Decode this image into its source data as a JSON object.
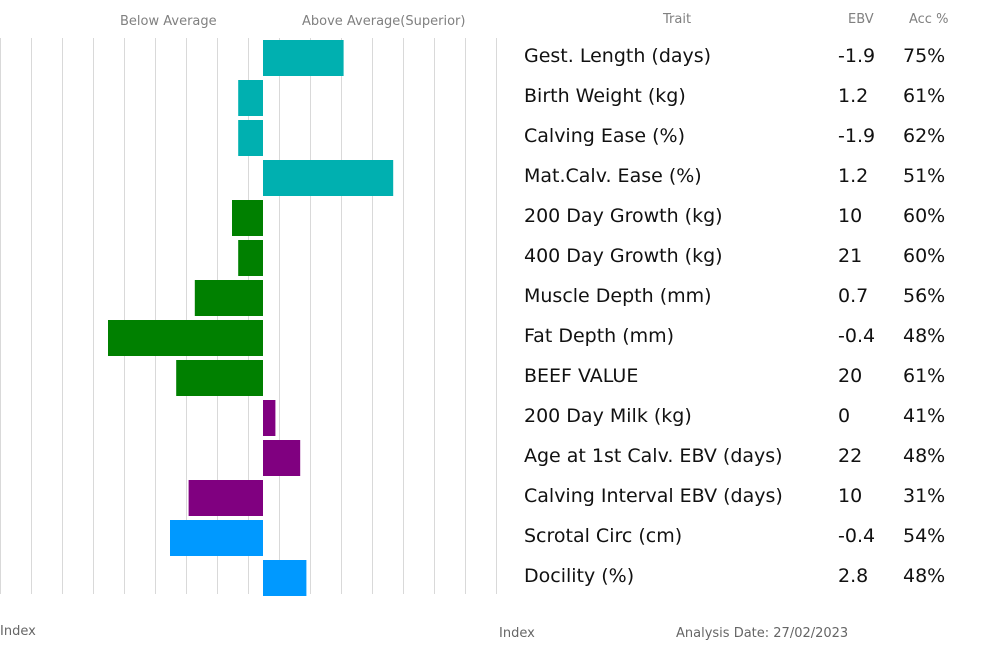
{
  "header": {
    "below_average": "Below Average",
    "above_average": "Above Average(Superior)",
    "trait": "Trait",
    "ebv": "EBV",
    "acc": "Acc %"
  },
  "footer": {
    "index_left": "Index",
    "index_right": "Index",
    "analysis_date": "Analysis Date: 27/02/2023"
  },
  "colors": {
    "calving": "#00b0b0",
    "growth": "#008000",
    "maternal": "#800080",
    "other": "#0099ff",
    "grid": "#d9d9d9"
  },
  "rows": [
    {
      "trait": "Gest. Length (days)",
      "ebv": "-1.9",
      "acc": "75%"
    },
    {
      "trait": "Birth Weight (kg)",
      "ebv": "1.2",
      "acc": "61%"
    },
    {
      "trait": "Calving Ease (%)",
      "ebv": "-1.9",
      "acc": "62%"
    },
    {
      "trait": "Mat.Calv. Ease (%)",
      "ebv": "1.2",
      "acc": "51%"
    },
    {
      "trait": "200 Day Growth (kg)",
      "ebv": "10",
      "acc": "60%"
    },
    {
      "trait": "400 Day Growth (kg)",
      "ebv": "21",
      "acc": "60%"
    },
    {
      "trait": "Muscle Depth (mm)",
      "ebv": "0.7",
      "acc": "56%"
    },
    {
      "trait": "Fat Depth (mm)",
      "ebv": "-0.4",
      "acc": "48%"
    },
    {
      "trait": "BEEF VALUE",
      "ebv": "20",
      "acc": "61%"
    },
    {
      "trait": "200 Day Milk (kg)",
      "ebv": "0",
      "acc": "41%"
    },
    {
      "trait": "Age at 1st Calv. EBV (days)",
      "ebv": "22",
      "acc": "48%"
    },
    {
      "trait": "Calving Interval EBV (days)",
      "ebv": "10",
      "acc": "31%"
    },
    {
      "trait": "Scrotal Circ (cm)",
      "ebv": "-0.4",
      "acc": "54%"
    },
    {
      "trait": "Docility (%)",
      "ebv": "2.8",
      "acc": "48%"
    }
  ],
  "chart_data": {
    "type": "bar",
    "orientation": "horizontal",
    "baseline": 100,
    "xlim": [
      60,
      140
    ],
    "xticks": [
      70,
      80,
      90,
      100,
      110,
      120,
      130
    ],
    "xlabel": "Index",
    "categories": [
      "Gest. Length (days)",
      "Birth Weight (kg)",
      "Calving Ease (%)",
      "Mat.Calv. Ease (%)",
      "200 Day Growth (kg)",
      "400 Day Growth (kg)",
      "Muscle Depth (mm)",
      "Fat Depth (mm)",
      "BEEF VALUE",
      "200 Day Milk (kg)",
      "Age at 1st Calv. EBV (days)",
      "Calving Interval EBV (days)",
      "Scrotal Circ (cm)",
      "Docility (%)"
    ],
    "values": [
      113,
      96,
      96,
      121,
      95,
      96,
      89,
      75,
      86,
      102,
      106,
      88,
      85,
      107
    ],
    "groups": [
      "calving",
      "calving",
      "calving",
      "calving",
      "growth",
      "growth",
      "growth",
      "growth",
      "growth",
      "maternal",
      "maternal",
      "maternal",
      "other",
      "other"
    ],
    "grid": true
  }
}
